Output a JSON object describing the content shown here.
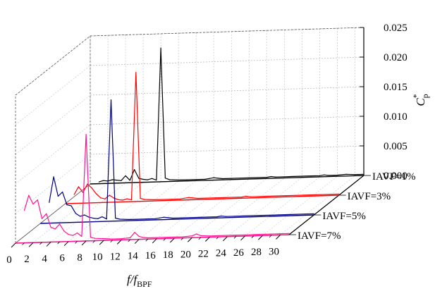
{
  "chart_data": {
    "type": "line",
    "style": "3d-waterfall",
    "xlabel": "f/f",
    "xlabel_subscript": "BPF",
    "ylabel": "C",
    "ylabel_superscript": "*",
    "ylabel_subscript": "p",
    "xlim": [
      0,
      31
    ],
    "ylim": [
      0,
      0.025
    ],
    "xticks": [
      0,
      2,
      4,
      6,
      8,
      10,
      12,
      14,
      16,
      18,
      20,
      22,
      24,
      26,
      28,
      30
    ],
    "yticks": [
      0.0,
      0.005,
      0.01,
      0.015,
      0.02,
      0.025
    ],
    "ytick_labels": [
      "0.000",
      "0.005",
      "0.010",
      "0.015",
      "0.020",
      "0.025"
    ],
    "grid": true,
    "colors": {
      "IAVF=1%": "#000000",
      "IAVF=3%": "#ff0000",
      "IAVF=5%": "#000080",
      "IAVF=7%": "#ff1493"
    },
    "series": [
      {
        "name": "IAVF=1%",
        "color": "#000000",
        "x": [
          1,
          1.5,
          2,
          2.5,
          3,
          3.5,
          4,
          4.5,
          5,
          5.5,
          6,
          6.5,
          7,
          7.5,
          8,
          8.5,
          9,
          10,
          11,
          12,
          13,
          13.5,
          14,
          14.5,
          15,
          16,
          17,
          18,
          19,
          20,
          20.5,
          21,
          22,
          23,
          24,
          25,
          26,
          26.5,
          27,
          28,
          29,
          30,
          31
        ],
        "values": [
          0.0003,
          0.0005,
          0.0004,
          0.0006,
          0.0005,
          0.0004,
          0.0012,
          0.0004,
          0.0022,
          0.0007,
          0.0005,
          0.0004,
          0.0006,
          0.0003,
          0.0226,
          0.0006,
          0.0003,
          0.0002,
          0.0002,
          0.0002,
          0.0002,
          0.0003,
          0.0004,
          0.0003,
          0.0002,
          0.0002,
          0.0002,
          0.0002,
          0.0002,
          0.0002,
          0.0003,
          0.0002,
          0.0002,
          0.0002,
          0.0002,
          0.0002,
          0.0002,
          0.0003,
          0.0002,
          0.0002,
          0.0003,
          0.0002,
          0.0002
        ]
      },
      {
        "name": "IAVF=3%",
        "color": "#ff0000",
        "x": [
          1,
          1.5,
          2,
          2.5,
          3,
          3.5,
          4,
          4.5,
          5,
          5.5,
          6,
          6.5,
          7,
          7.5,
          8,
          8.5,
          9,
          10,
          11,
          12,
          13,
          13.5,
          14,
          14.5,
          15,
          16,
          17,
          18,
          19,
          20,
          20.5,
          21,
          22,
          23,
          24,
          25,
          26,
          26.5,
          27,
          28,
          29,
          30,
          31
        ],
        "values": [
          0.0015,
          0.0028,
          0.0018,
          0.0032,
          0.0025,
          0.0015,
          0.0008,
          0.0006,
          0.0012,
          0.0007,
          0.0004,
          0.0003,
          0.0005,
          0.0003,
          0.0218,
          0.0005,
          0.0003,
          0.0002,
          0.0002,
          0.0002,
          0.0002,
          0.0003,
          0.0004,
          0.0003,
          0.0002,
          0.0002,
          0.0002,
          0.0002,
          0.0002,
          0.0002,
          0.0003,
          0.0002,
          0.0002,
          0.0002,
          0.0002,
          0.0002,
          0.0002,
          0.0002,
          0.0002,
          0.0002,
          0.0002,
          0.0002,
          0.0002
        ]
      },
      {
        "name": "IAVF=5%",
        "color": "#000080",
        "x": [
          1,
          1.5,
          2,
          2.5,
          3,
          3.5,
          4,
          4.5,
          5,
          5.5,
          6,
          6.5,
          7,
          7.5,
          8,
          8.5,
          9,
          10,
          11,
          12,
          13,
          13.5,
          14,
          14.5,
          15,
          16,
          17,
          18,
          19,
          20,
          20.5,
          21,
          22,
          23,
          24,
          25,
          26,
          26.5,
          27,
          28,
          29,
          30,
          31
        ],
        "values": [
          0.0035,
          0.0078,
          0.0045,
          0.0052,
          0.003,
          0.0028,
          0.0015,
          0.001,
          0.0012,
          0.0008,
          0.0006,
          0.0005,
          0.0008,
          0.0004,
          0.0205,
          0.0005,
          0.0003,
          0.0002,
          0.0002,
          0.0002,
          0.0002,
          0.0003,
          0.0004,
          0.0003,
          0.0002,
          0.0002,
          0.0002,
          0.0002,
          0.0002,
          0.0002,
          0.0003,
          0.0002,
          0.0002,
          0.0002,
          0.0002,
          0.0002,
          0.0002,
          0.0002,
          0.0002,
          0.0002,
          0.0002,
          0.0002,
          0.0002
        ]
      },
      {
        "name": "IAVF=7%",
        "color": "#ff1493",
        "x": [
          1,
          1.5,
          2,
          2.5,
          3,
          3.5,
          4,
          4.5,
          5,
          5.5,
          6,
          6.5,
          7,
          7.5,
          8,
          8.5,
          9,
          10,
          11,
          12,
          13,
          13.5,
          14,
          14.5,
          15,
          16,
          17,
          18,
          19,
          20,
          20.5,
          21,
          22,
          23,
          24,
          25,
          26,
          26.5,
          27,
          28,
          29,
          30,
          31
        ],
        "values": [
          0.0055,
          0.008,
          0.0065,
          0.0072,
          0.004,
          0.0048,
          0.0025,
          0.0022,
          0.003,
          0.0018,
          0.0012,
          0.001,
          0.0014,
          0.0008,
          0.018,
          0.0006,
          0.0004,
          0.0003,
          0.0002,
          0.0002,
          0.0003,
          0.0012,
          0.0005,
          0.0003,
          0.0002,
          0.0002,
          0.0002,
          0.0002,
          0.0002,
          0.0003,
          0.0006,
          0.0003,
          0.0002,
          0.0002,
          0.0002,
          0.0002,
          0.0002,
          0.0002,
          0.0002,
          0.0002,
          0.0002,
          0.0002,
          0.0002
        ]
      }
    ]
  }
}
